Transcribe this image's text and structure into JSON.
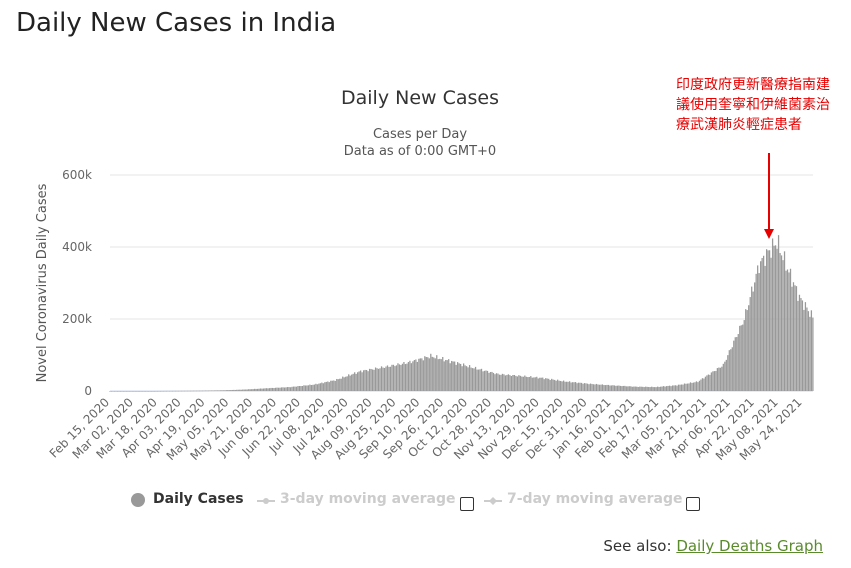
{
  "page": {
    "title": "Daily New Cases in India"
  },
  "annotation": {
    "text": "印度政府更新醫療指南建議使用奎寧和伊維菌素治療武漢肺炎輕症患者",
    "color": "#e60000"
  },
  "legend": {
    "items": [
      {
        "label": "Daily Cases",
        "active": true
      },
      {
        "label": "3-day moving average",
        "active": false
      },
      {
        "label": "7-day moving average",
        "active": false
      }
    ]
  },
  "see_also": {
    "prefix": "See also:",
    "link": "Daily Deaths Graph"
  },
  "chart_data": {
    "type": "bar",
    "title": "Daily New Cases",
    "subtitle_lines": [
      "Cases per Day",
      "Data as of 0:00 GMT+0"
    ],
    "xlabel": "",
    "ylabel": "Novel Coronavirus Daily Cases",
    "ylim": [
      0,
      600000
    ],
    "yticks": [
      0,
      200000,
      400000,
      600000
    ],
    "ytick_labels": [
      "0",
      "200k",
      "400k",
      "600k"
    ],
    "xtick_labels": [
      "Feb 15, 2020",
      "Mar 02, 2020",
      "Mar 18, 2020",
      "Apr 03, 2020",
      "Apr 19, 2020",
      "May 05, 2020",
      "May 21, 2020",
      "Jun 06, 2020",
      "Jun 22, 2020",
      "Jul 08, 2020",
      "Jul 24, 2020",
      "Aug 09, 2020",
      "Aug 25, 2020",
      "Sep 10, 2020",
      "Sep 26, 2020",
      "Oct 12, 2020",
      "Oct 28, 2020",
      "Nov 13, 2020",
      "Nov 29, 2020",
      "Dec 15, 2020",
      "Dec 31, 2020",
      "Jan 16, 2021",
      "Feb 01, 2021",
      "Feb 17, 2021",
      "Mar 05, 2021",
      "Mar 21, 2021",
      "Apr 06, 2021",
      "Apr 22, 2021",
      "May 08, 2021",
      "May 24, 2021"
    ],
    "start_date": "2020-02-15",
    "end_date": "2021-05-31",
    "series": [
      {
        "name": "Daily Cases",
        "color": "#999999",
        "points": [
          {
            "date": "2020-02-15",
            "value": 0
          },
          {
            "date": "2020-03-15",
            "value": 20
          },
          {
            "date": "2020-04-01",
            "value": 500
          },
          {
            "date": "2020-04-15",
            "value": 1000
          },
          {
            "date": "2020-05-01",
            "value": 2000
          },
          {
            "date": "2020-05-15",
            "value": 4000
          },
          {
            "date": "2020-06-01",
            "value": 8000
          },
          {
            "date": "2020-06-15",
            "value": 11000
          },
          {
            "date": "2020-07-01",
            "value": 18000
          },
          {
            "date": "2020-07-15",
            "value": 30000
          },
          {
            "date": "2020-08-01",
            "value": 55000
          },
          {
            "date": "2020-08-15",
            "value": 65000
          },
          {
            "date": "2020-09-01",
            "value": 78000
          },
          {
            "date": "2020-09-17",
            "value": 97000
          },
          {
            "date": "2020-10-01",
            "value": 82000
          },
          {
            "date": "2020-10-15",
            "value": 65000
          },
          {
            "date": "2020-11-01",
            "value": 47000
          },
          {
            "date": "2020-11-15",
            "value": 42000
          },
          {
            "date": "2020-12-01",
            "value": 36000
          },
          {
            "date": "2020-12-15",
            "value": 27000
          },
          {
            "date": "2021-01-01",
            "value": 20000
          },
          {
            "date": "2021-01-15",
            "value": 16000
          },
          {
            "date": "2021-02-01",
            "value": 12000
          },
          {
            "date": "2021-02-15",
            "value": 11000
          },
          {
            "date": "2021-03-01",
            "value": 16000
          },
          {
            "date": "2021-03-15",
            "value": 26000
          },
          {
            "date": "2021-04-01",
            "value": 72000
          },
          {
            "date": "2021-04-15",
            "value": 200000
          },
          {
            "date": "2021-04-25",
            "value": 350000
          },
          {
            "date": "2021-05-01",
            "value": 385000
          },
          {
            "date": "2021-05-07",
            "value": 414000
          },
          {
            "date": "2021-05-15",
            "value": 330000
          },
          {
            "date": "2021-05-22",
            "value": 260000
          },
          {
            "date": "2021-05-31",
            "value": 205000
          }
        ]
      }
    ],
    "grid": true,
    "legend_position": "bottom"
  }
}
